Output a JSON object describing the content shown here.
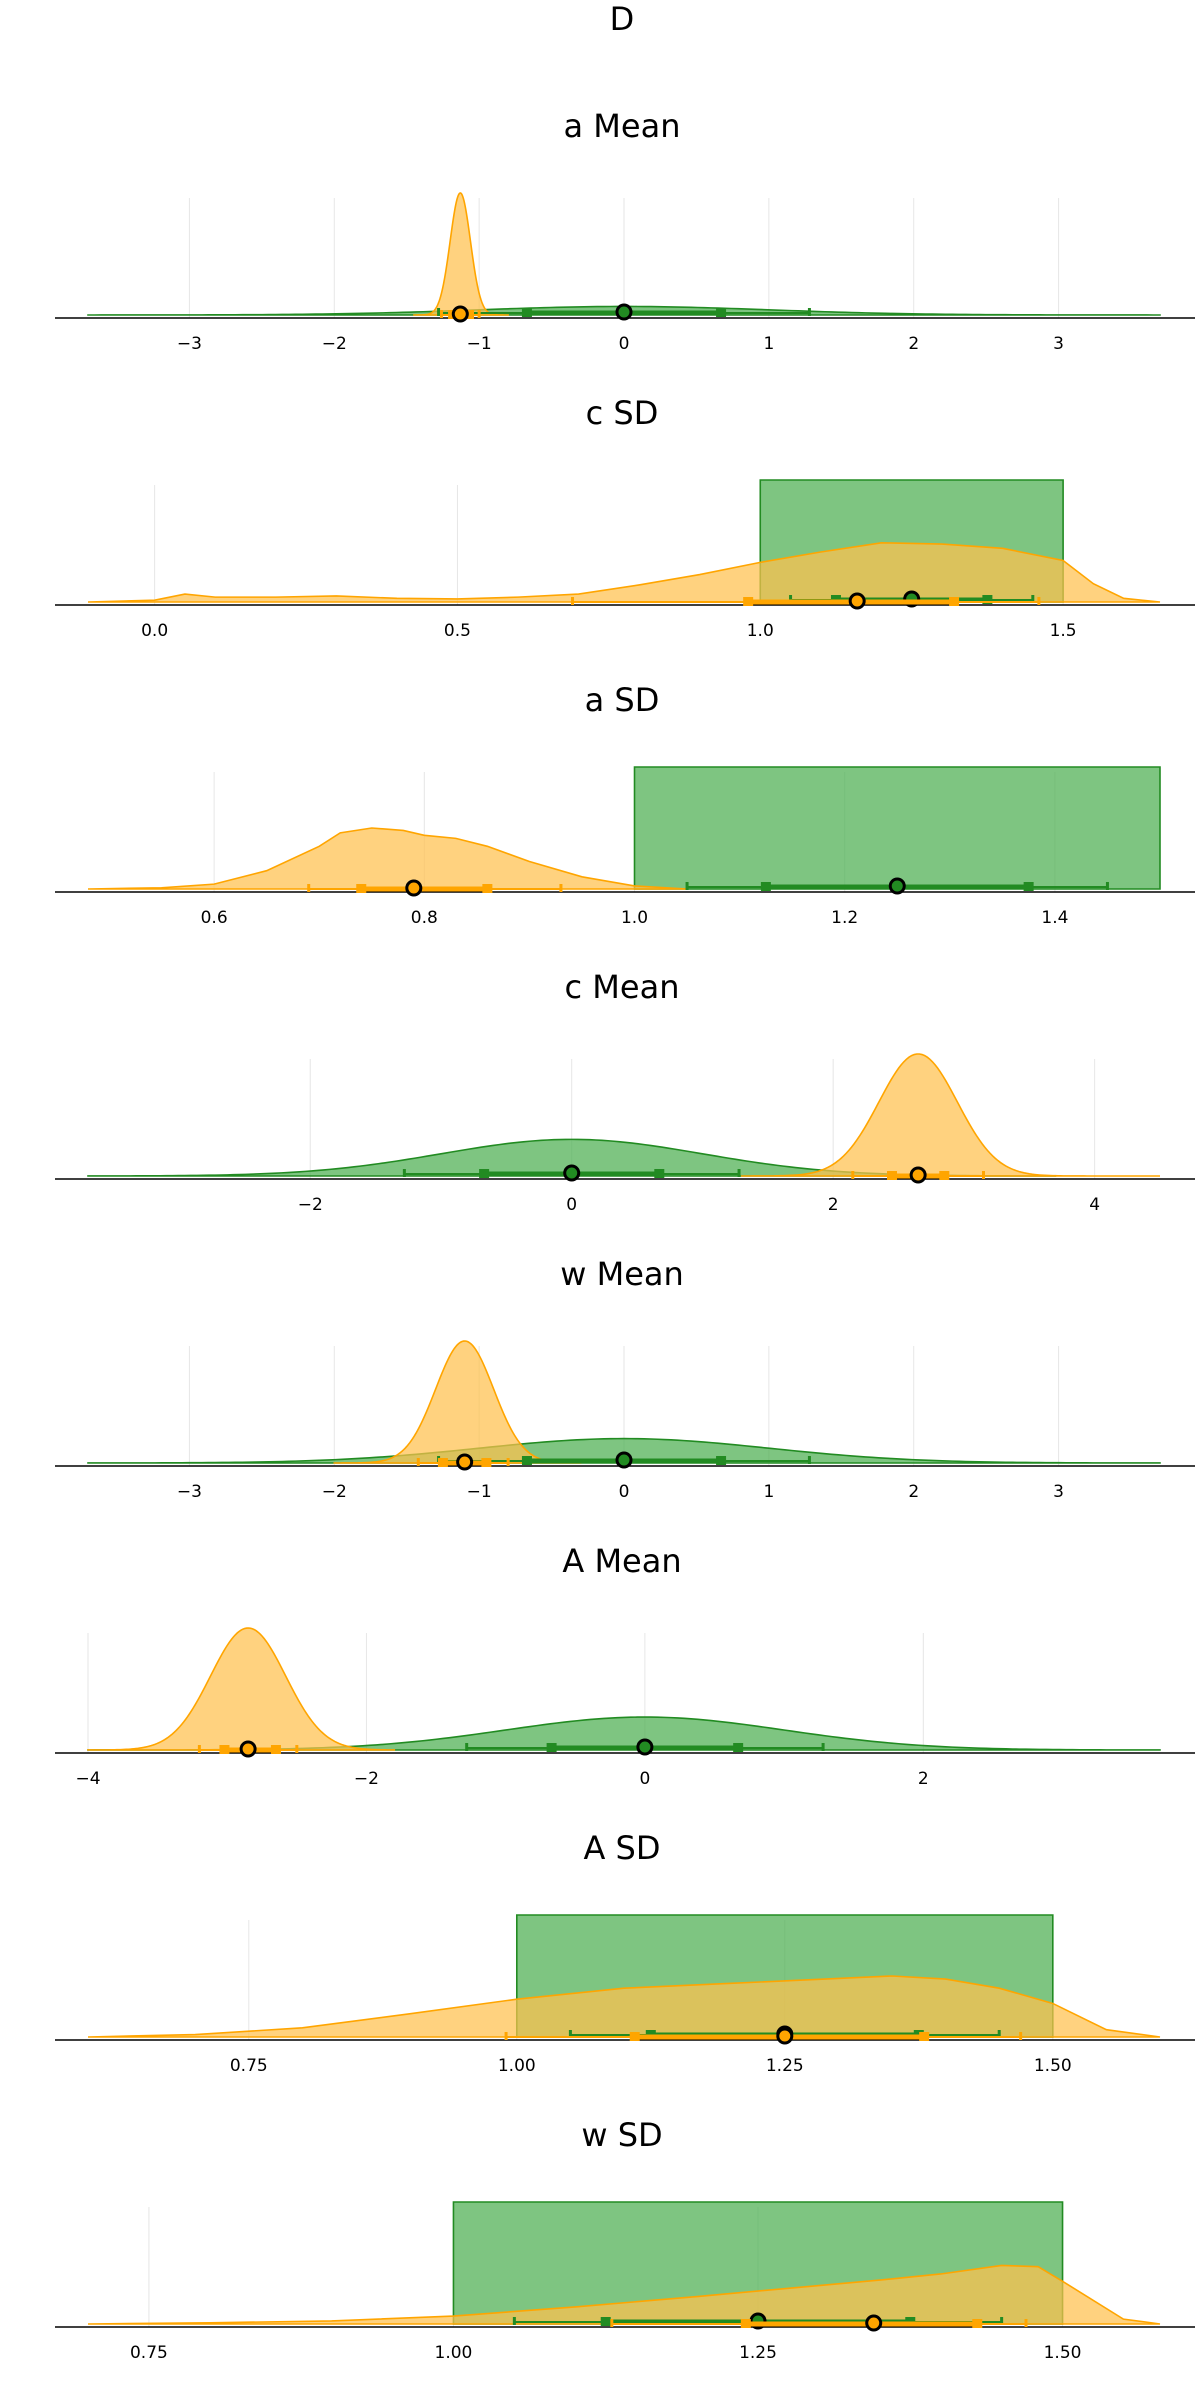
{
  "title": "D",
  "colors": {
    "prior": "#228B22",
    "posterior": "#FFA500",
    "prior_fill": "#4CAF50",
    "posterior_fill": "#FFC04D"
  },
  "chart_data": [
    {
      "type": "area",
      "title": "a  Mean",
      "xlim": [
        -3.7,
        3.7
      ],
      "xticks": [
        -3,
        -2,
        -1,
        0,
        1,
        2,
        3
      ],
      "xtick_labels": [
        "−3",
        "−2",
        "−1",
        "0",
        "1",
        "2",
        "3"
      ],
      "grid": true,
      "series": [
        {
          "kind": "normal",
          "role": "prior",
          "mean": 0,
          "sd": 1,
          "range": [
            -3.7,
            3.7
          ],
          "median": 0,
          "i50": [
            -0.67,
            0.67
          ],
          "i90": [
            -1.28,
            1.28
          ]
        },
        {
          "kind": "normal",
          "role": "posterior",
          "mean": -1.13,
          "sd": 0.07,
          "range": [
            -1.45,
            -0.8
          ],
          "median": -1.13,
          "i50": [
            -1.18,
            -1.07
          ],
          "i90": [
            -1.26,
            -1.0
          ]
        }
      ]
    },
    {
      "type": "area",
      "title": "c  SD",
      "xlim": [
        -0.11,
        1.66
      ],
      "xticks": [
        0.0,
        0.5,
        1.0,
        1.5
      ],
      "xtick_labels": [
        "0.0",
        "0.5",
        "1.0",
        "1.5"
      ],
      "grid": true,
      "series": [
        {
          "kind": "uniform",
          "role": "prior",
          "range": [
            1.0,
            1.5
          ],
          "median": 1.25,
          "i50": [
            1.125,
            1.375
          ],
          "i90": [
            1.05,
            1.45
          ]
        },
        {
          "kind": "points",
          "role": "posterior",
          "x": [
            -0.11,
            0.0,
            0.05,
            0.1,
            0.2,
            0.3,
            0.4,
            0.5,
            0.6,
            0.7,
            0.8,
            0.9,
            1.0,
            1.1,
            1.2,
            1.3,
            1.4,
            1.5,
            1.55,
            1.6,
            1.66
          ],
          "y": [
            0.0,
            0.03,
            0.13,
            0.08,
            0.08,
            0.1,
            0.06,
            0.05,
            0.08,
            0.13,
            0.28,
            0.45,
            0.65,
            0.82,
            0.97,
            0.95,
            0.88,
            0.68,
            0.3,
            0.06,
            0.0
          ],
          "median": 1.16,
          "i50": [
            0.98,
            1.32
          ],
          "i90": [
            0.69,
            1.46
          ]
        }
      ]
    },
    {
      "type": "area",
      "title": "a  SD",
      "xlim": [
        0.48,
        1.5
      ],
      "xticks": [
        0.6,
        0.8,
        1.0,
        1.2,
        1.4
      ],
      "xtick_labels": [
        "0.6",
        "0.8",
        "1.0",
        "1.2",
        "1.4"
      ],
      "grid": true,
      "series": [
        {
          "kind": "uniform",
          "role": "prior",
          "range": [
            1.0,
            1.5
          ],
          "median": 1.25,
          "i50": [
            1.125,
            1.375
          ],
          "i90": [
            1.05,
            1.45
          ]
        },
        {
          "kind": "points",
          "role": "posterior",
          "x": [
            0.48,
            0.55,
            0.6,
            0.65,
            0.7,
            0.72,
            0.75,
            0.78,
            0.8,
            0.83,
            0.86,
            0.9,
            0.95,
            1.0,
            1.05
          ],
          "y": [
            0.0,
            0.02,
            0.08,
            0.3,
            0.7,
            0.92,
            1.0,
            0.96,
            0.88,
            0.83,
            0.7,
            0.45,
            0.2,
            0.05,
            0.0
          ],
          "median": 0.79,
          "i50": [
            0.74,
            0.86
          ],
          "i90": [
            0.69,
            0.93
          ]
        }
      ]
    },
    {
      "type": "area",
      "title": "c  Mean",
      "xlim": [
        -3.7,
        4.5
      ],
      "xticks": [
        -2,
        0,
        2,
        4
      ],
      "xtick_labels": [
        "−2",
        "0",
        "2",
        "4"
      ],
      "grid": true,
      "series": [
        {
          "kind": "normal",
          "role": "prior",
          "mean": 0,
          "sd": 1,
          "range": [
            -3.7,
            3.7
          ],
          "median": 0,
          "i50": [
            -0.67,
            0.67
          ],
          "i90": [
            -1.28,
            1.28
          ]
        },
        {
          "kind": "normal",
          "role": "posterior",
          "mean": 2.65,
          "sd": 0.3,
          "range": [
            1.3,
            4.5
          ],
          "median": 2.65,
          "i50": [
            2.45,
            2.85
          ],
          "i90": [
            2.15,
            3.15
          ]
        }
      ]
    },
    {
      "type": "area",
      "title": "w  Mean",
      "xlim": [
        -3.7,
        3.7
      ],
      "xticks": [
        -3,
        -2,
        -1,
        0,
        1,
        2,
        3
      ],
      "xtick_labels": [
        "−3",
        "−2",
        "−1",
        "0",
        "1",
        "2",
        "3"
      ],
      "grid": true,
      "series": [
        {
          "kind": "normal",
          "role": "prior",
          "mean": 0,
          "sd": 1,
          "range": [
            -3.7,
            3.7
          ],
          "median": 0,
          "i50": [
            -0.67,
            0.67
          ],
          "i90": [
            -1.28,
            1.28
          ]
        },
        {
          "kind": "normal",
          "role": "posterior",
          "mean": -1.1,
          "sd": 0.2,
          "range": [
            -2.0,
            -0.3
          ],
          "median": -1.1,
          "i50": [
            -1.25,
            -0.95
          ],
          "i90": [
            -1.42,
            -0.8
          ]
        }
      ]
    },
    {
      "type": "area",
      "title": "A  Mean",
      "xlim": [
        -4.0,
        3.7
      ],
      "xticks": [
        -4,
        -2,
        0,
        2
      ],
      "xtick_labels": [
        "−4",
        "−2",
        "0",
        "2"
      ],
      "grid": true,
      "series": [
        {
          "kind": "normal",
          "role": "prior",
          "mean": 0,
          "sd": 1,
          "range": [
            -4.0,
            3.7
          ],
          "median": 0,
          "i50": [
            -0.67,
            0.67
          ],
          "i90": [
            -1.28,
            1.28
          ]
        },
        {
          "kind": "normal",
          "role": "posterior",
          "mean": -2.85,
          "sd": 0.27,
          "range": [
            -4.0,
            -1.8
          ],
          "median": -2.85,
          "i50": [
            -3.02,
            -2.65
          ],
          "i90": [
            -3.2,
            -2.5
          ]
        }
      ]
    },
    {
      "type": "area",
      "title": "A  SD",
      "xlim": [
        0.6,
        1.6
      ],
      "xticks": [
        0.75,
        1.0,
        1.25,
        1.5
      ],
      "xtick_labels": [
        "0.75",
        "1.00",
        "1.25",
        "1.50"
      ],
      "grid": true,
      "series": [
        {
          "kind": "uniform",
          "role": "prior",
          "range": [
            1.0,
            1.5
          ],
          "median": 1.25,
          "i50": [
            1.125,
            1.375
          ],
          "i90": [
            1.05,
            1.45
          ]
        },
        {
          "kind": "points",
          "role": "posterior",
          "x": [
            0.6,
            0.7,
            0.8,
            0.9,
            1.0,
            1.1,
            1.2,
            1.3,
            1.35,
            1.4,
            1.45,
            1.5,
            1.55,
            1.6
          ],
          "y": [
            0.0,
            0.04,
            0.15,
            0.38,
            0.62,
            0.8,
            0.88,
            0.96,
            1.0,
            0.95,
            0.8,
            0.55,
            0.12,
            0.0
          ],
          "median": 1.25,
          "i50": [
            1.11,
            1.38
          ],
          "i90": [
            0.99,
            1.47
          ]
        }
      ]
    },
    {
      "type": "area",
      "title": "w  SD",
      "xlim": [
        0.7,
        1.58
      ],
      "xticks": [
        0.75,
        1.0,
        1.25,
        1.5
      ],
      "xtick_labels": [
        "0.75",
        "1.00",
        "1.25",
        "1.50"
      ],
      "grid": true,
      "series": [
        {
          "kind": "uniform",
          "role": "prior",
          "range": [
            1.0,
            1.5
          ],
          "median": 1.25,
          "i50": [
            1.125,
            1.375
          ],
          "i90": [
            1.05,
            1.45
          ]
        },
        {
          "kind": "points",
          "role": "posterior",
          "x": [
            0.7,
            0.8,
            0.9,
            1.0,
            1.1,
            1.2,
            1.3,
            1.35,
            1.4,
            1.45,
            1.48,
            1.5,
            1.55,
            1.58
          ],
          "y": [
            0.0,
            0.02,
            0.05,
            0.13,
            0.28,
            0.45,
            0.63,
            0.72,
            0.82,
            0.96,
            0.94,
            0.7,
            0.08,
            0.0
          ],
          "median": 1.345,
          "i50": [
            1.24,
            1.43
          ],
          "i90": [
            1.13,
            1.47
          ]
        }
      ]
    }
  ]
}
